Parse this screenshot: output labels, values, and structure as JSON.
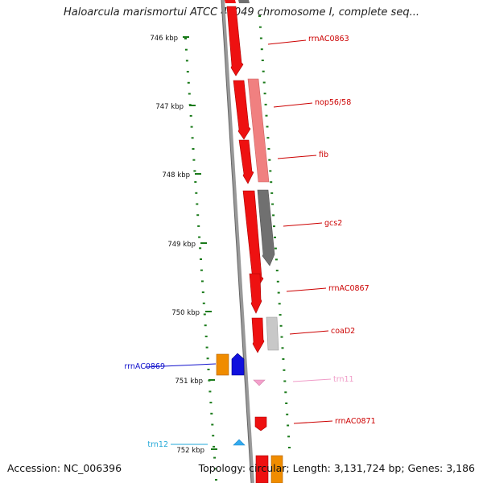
{
  "header": {
    "title": "Haloarcula marismortui ATCC 43049 chromosome I, complete seq..."
  },
  "footer": {
    "accession": "Accession: NC_006396",
    "summary": "Topology: circular; Length: 3,131,724 bp; Genes: 3,186"
  },
  "ruler": {
    "ticks": [
      {
        "kbp": 746,
        "label": "746 kbp"
      },
      {
        "kbp": 747,
        "label": "747 kbp"
      },
      {
        "kbp": 748,
        "label": "748 kbp"
      },
      {
        "kbp": 749,
        "label": "749 kbp"
      },
      {
        "kbp": 750,
        "label": "750 kbp"
      },
      {
        "kbp": 751,
        "label": "751 kbp"
      },
      {
        "kbp": 752,
        "label": "752 kbp"
      }
    ]
  },
  "features": [
    {
      "name": "rrnAC0863",
      "color": "#cc0000"
    },
    {
      "name": "nop56/58",
      "color": "#cc0000"
    },
    {
      "name": "fib",
      "color": "#cc0000"
    },
    {
      "name": "gcs2",
      "color": "#cc0000"
    },
    {
      "name": "rrnAC0867",
      "color": "#cc0000"
    },
    {
      "name": "coaD2",
      "color": "#cc0000"
    },
    {
      "name": "rrnAC0869",
      "color": "#1010cc"
    },
    {
      "name": "trn11",
      "color": "#f09cc8"
    },
    {
      "name": "rrnAC0871",
      "color": "#cc0000"
    },
    {
      "name": "trn12",
      "color": "#22a8d8"
    }
  ],
  "colors": {
    "backbone": "#888888",
    "tick": "#1a7a1a",
    "red": "#ee1111",
    "pink": "#f08080",
    "gray": "#707070",
    "lightgray": "#c8c8c8",
    "orange": "#f08c00",
    "blue": "#1111dd",
    "lightpink": "#f4a0cc",
    "cyan": "#33aaee"
  }
}
